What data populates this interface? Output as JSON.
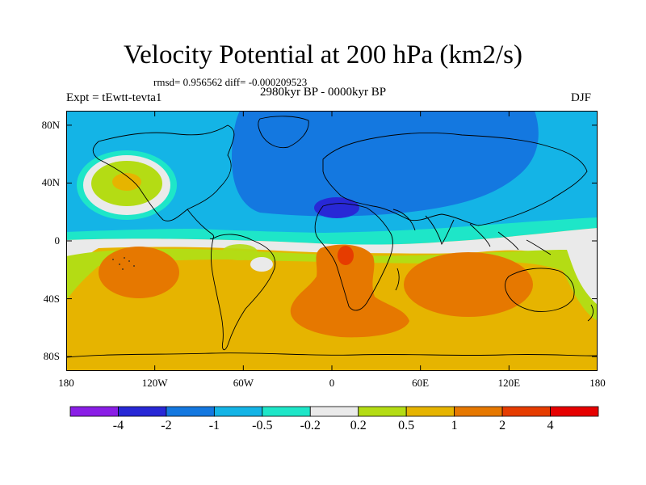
{
  "map": {
    "title": "Velocity Potential at 200 hPa (km2/s)",
    "stats": "rmsd= 0.956562  diff= -0.000209523",
    "experiment": "Expt = tEwtt-tevta1",
    "period": "2980kyr BP - 0000kyr BP",
    "season": "DJF",
    "lat_labels": [
      "80N",
      "40N",
      "0",
      "40S",
      "80S"
    ],
    "lat_values": [
      80,
      40,
      0,
      -40,
      -80
    ],
    "lon_labels": [
      "180",
      "120W",
      "60W",
      "0",
      "60E",
      "120E",
      "180"
    ],
    "lon_values": [
      -180,
      -120,
      -60,
      0,
      60,
      120,
      180
    ],
    "xlim": [
      -180,
      180
    ],
    "ylim": [
      -90,
      90
    ]
  },
  "colorbar": {
    "colors": [
      "#8a1ee6",
      "#2828d6",
      "#1478e0",
      "#14b4e6",
      "#1ee6c8",
      "#eaeaea",
      "#b4dc14",
      "#e6b400",
      "#e67800",
      "#e63c00",
      "#e60000"
    ],
    "labels": [
      "-4",
      "-2",
      "-1",
      "-0.5",
      "-0.2",
      "0.2",
      "0.5",
      "1",
      "2",
      "4"
    ]
  },
  "fields": [
    {
      "name": "background-orange",
      "color": "#e6b400"
    },
    {
      "name": "negative-light-blue",
      "color": "#14b4e6"
    },
    {
      "name": "negative-blue",
      "color": "#1478e0"
    },
    {
      "name": "negative-dark-blue",
      "color": "#2828d6"
    },
    {
      "name": "cyan-band",
      "color": "#1ee6c8"
    },
    {
      "name": "white-band",
      "color": "#eaeaea"
    },
    {
      "name": "green-band",
      "color": "#b4dc14"
    },
    {
      "name": "dark-orange",
      "color": "#e67800"
    },
    {
      "name": "red-orange",
      "color": "#e63c00"
    }
  ]
}
